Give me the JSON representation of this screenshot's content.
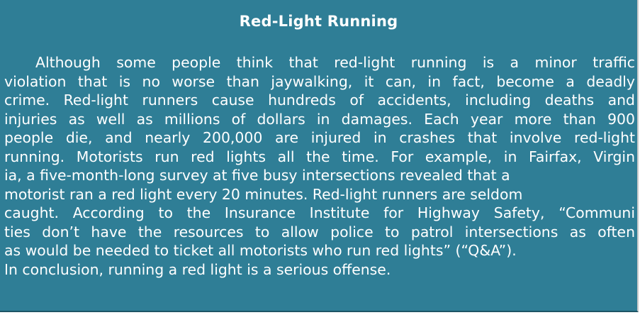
{
  "document": {
    "title": "Red-Light Running",
    "lines": [
      "Although some people think that red-light running is a minor traffic",
      "violation that is no worse than jaywalking, it can, in fact, become a deadly",
      "crime. Red-light runners cause hundreds of accidents, including deaths and",
      "injuries as well as millions of dollars in damages. Each year more than 900",
      "people die, and nearly 200,000 are injured in crashes that involve red-light",
      "running. Motorists run red lights all the time. For example, in Fairfax, Virgin",
      "ia, a five-month-long survey at five busy intersections revealed that a",
      "motorist ran a red light every 20 minutes. Red-light runners are seldom",
      "caught. According to the Insurance Institute for Highway Safety, “Communi",
      "ties don’t have the resources to allow police to patrol intersections as often",
      "as would be needed to ticket all motorists who run red lights” (“Q&A”).",
      "In conclusion, running a red light is a serious offense."
    ]
  },
  "colors": {
    "panel_background": "#2f7e96",
    "text": "#ffffff"
  }
}
